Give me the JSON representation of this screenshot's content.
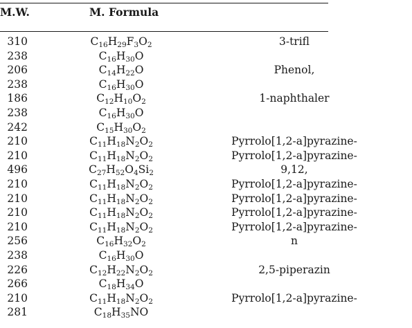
{
  "table": {
    "headers": {
      "mw": "M.W.",
      "formula": "M. Formula"
    },
    "rows": [
      {
        "mw": "310",
        "formula": [
          [
            "C",
            "16"
          ],
          [
            "H",
            "29"
          ],
          [
            "F",
            "3"
          ],
          [
            "O",
            "2"
          ]
        ],
        "name": "3-trifl"
      },
      {
        "mw": "238",
        "formula": [
          [
            "C",
            "16"
          ],
          [
            "H",
            "30"
          ],
          [
            "O",
            ""
          ]
        ],
        "name": ""
      },
      {
        "mw": "206",
        "formula": [
          [
            "C",
            "14"
          ],
          [
            "H",
            "22"
          ],
          [
            "O",
            ""
          ]
        ],
        "name": "Phenol,"
      },
      {
        "mw": "238",
        "formula": [
          [
            "C",
            "16"
          ],
          [
            "H",
            "30"
          ],
          [
            "O",
            ""
          ]
        ],
        "name": ""
      },
      {
        "mw": "186",
        "formula": [
          [
            "C",
            "12"
          ],
          [
            "H",
            "10"
          ],
          [
            "O",
            "2"
          ]
        ],
        "name": "1-naphthaler"
      },
      {
        "mw": "238",
        "formula": [
          [
            "C",
            "16"
          ],
          [
            "H",
            "30"
          ],
          [
            "O",
            ""
          ]
        ],
        "name": ""
      },
      {
        "mw": "242",
        "formula": [
          [
            "C",
            "15"
          ],
          [
            "H",
            "30"
          ],
          [
            "O",
            "2"
          ]
        ],
        "name": ""
      },
      {
        "mw": "210",
        "formula": [
          [
            "C",
            "11"
          ],
          [
            "H",
            "18"
          ],
          [
            "N",
            "2"
          ],
          [
            "O",
            "2"
          ]
        ],
        "name": "Pyrrolo[1,2-a]pyrazine-"
      },
      {
        "mw": "210",
        "formula": [
          [
            "C",
            "11"
          ],
          [
            "H",
            "18"
          ],
          [
            "N",
            "2"
          ],
          [
            "O",
            "2"
          ]
        ],
        "name": "Pyrrolo[1,2-a]pyrazine-"
      },
      {
        "mw": "496",
        "formula": [
          [
            "C",
            "27"
          ],
          [
            "H",
            "52"
          ],
          [
            "O",
            "4"
          ],
          [
            "Si",
            "2"
          ]
        ],
        "name": "9,12,"
      },
      {
        "mw": "210",
        "formula": [
          [
            "C",
            "11"
          ],
          [
            "H",
            "18"
          ],
          [
            "N",
            "2"
          ],
          [
            "O",
            "2"
          ]
        ],
        "name": "Pyrrolo[1,2-a]pyrazine-"
      },
      {
        "mw": "210",
        "formula": [
          [
            "C",
            "11"
          ],
          [
            "H",
            "18"
          ],
          [
            "N",
            "2"
          ],
          [
            "O",
            "2"
          ]
        ],
        "name": "Pyrrolo[1,2-a]pyrazine-"
      },
      {
        "mw": "210",
        "formula": [
          [
            "C",
            "11"
          ],
          [
            "H",
            "18"
          ],
          [
            "N",
            "2"
          ],
          [
            "O",
            "2"
          ]
        ],
        "name": "Pyrrolo[1,2-a]pyrazine-"
      },
      {
        "mw": "210",
        "formula": [
          [
            "C",
            "11"
          ],
          [
            "H",
            "18"
          ],
          [
            "N",
            "2"
          ],
          [
            "O",
            "2"
          ]
        ],
        "name": "Pyrrolo[1,2-a]pyrazine-"
      },
      {
        "mw": "256",
        "formula": [
          [
            "C",
            "16"
          ],
          [
            "H",
            "32"
          ],
          [
            "O",
            "2"
          ]
        ],
        "name": "n"
      },
      {
        "mw": "238",
        "formula": [
          [
            "C",
            "16"
          ],
          [
            "H",
            "30"
          ],
          [
            "O",
            ""
          ]
        ],
        "name": ""
      },
      {
        "mw": "226",
        "formula": [
          [
            "C",
            "12"
          ],
          [
            "H",
            "22"
          ],
          [
            "N",
            "2"
          ],
          [
            "O",
            "2"
          ]
        ],
        "name": "2,5-piperazin"
      },
      {
        "mw": "266",
        "formula": [
          [
            "C",
            "18"
          ],
          [
            "H",
            "34"
          ],
          [
            "O",
            ""
          ]
        ],
        "name": ""
      },
      {
        "mw": "210",
        "formula": [
          [
            "C",
            "11"
          ],
          [
            "H",
            "18"
          ],
          [
            "N",
            "2"
          ],
          [
            "O",
            "2"
          ]
        ],
        "name": "Pyrrolo[1,2-a]pyrazine-"
      },
      {
        "mw": "281",
        "formula": [
          [
            "C",
            "18"
          ],
          [
            "H",
            "35"
          ],
          [
            "NO",
            ""
          ]
        ],
        "name": ""
      }
    ]
  }
}
